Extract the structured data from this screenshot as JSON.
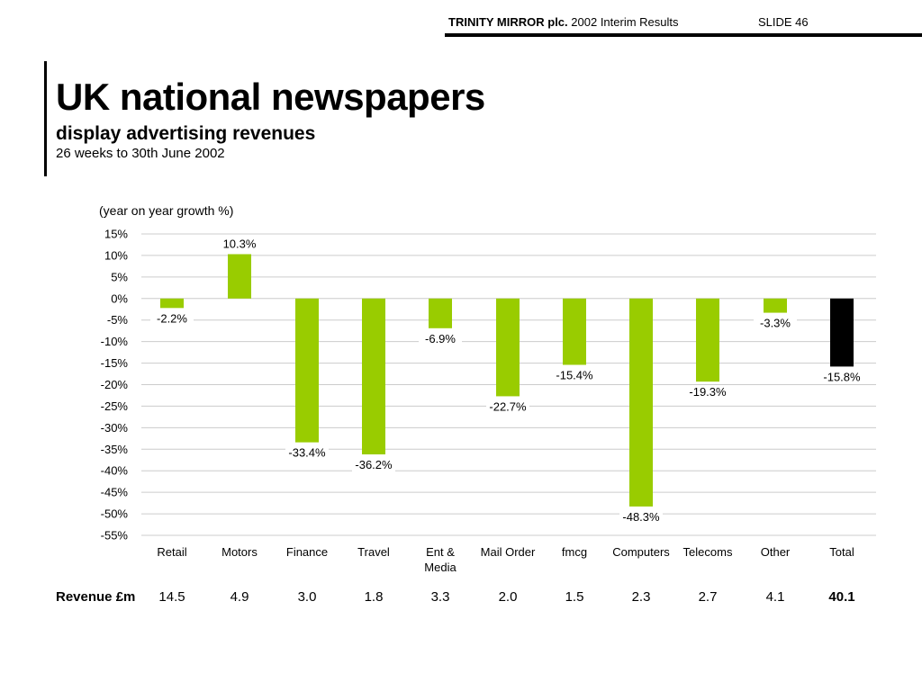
{
  "header": {
    "company": "TRINITY MIRROR plc.",
    "subtitle": "2002 Interim Results",
    "slide": "SLIDE 46"
  },
  "slide": {
    "title": "UK national newspapers",
    "subtitle": "display advertising revenues",
    "period": "26 weeks to 30th June 2002"
  },
  "colors": {
    "bar": "#99cc00",
    "total_bar": "#000000",
    "grid": "#cccccc"
  },
  "chart_data": {
    "type": "bar",
    "ylabel": "(year on year growth %)",
    "ylim": [
      -55,
      15
    ],
    "yticks": [
      15,
      10,
      5,
      0,
      -5,
      -10,
      -15,
      -20,
      -25,
      -30,
      -35,
      -40,
      -45,
      -50,
      -55
    ],
    "ytick_labels": [
      "15%",
      "10%",
      "5%",
      "0%",
      "-5%",
      "-10%",
      "-15%",
      "-20%",
      "-25%",
      "-30%",
      "-35%",
      "-40%",
      "-45%",
      "-50%",
      "-55%"
    ],
    "grid": true,
    "categories": [
      "Retail",
      "Motors",
      "Finance",
      "Travel",
      "Ent & Media",
      "Mail Order",
      "fmcg",
      "Computers",
      "Telecoms",
      "Other",
      "Total"
    ],
    "category_lines": [
      [
        "Retail"
      ],
      [
        "Motors"
      ],
      [
        "Finance"
      ],
      [
        "Travel"
      ],
      [
        "Ent &",
        "Media"
      ],
      [
        "Mail Order"
      ],
      [
        "fmcg"
      ],
      [
        "Computers"
      ],
      [
        "Telecoms"
      ],
      [
        "Other"
      ],
      [
        "Total"
      ]
    ],
    "values": [
      -2.2,
      10.3,
      -33.4,
      -36.2,
      -6.9,
      -22.7,
      -15.4,
      -48.3,
      -19.3,
      -3.3,
      -15.8
    ],
    "data_labels": [
      "-2.2%",
      "10.3%",
      "-33.4%",
      "-36.2%",
      "-6.9%",
      "-22.7%",
      "-15.4%",
      "-48.3%",
      "-19.3%",
      "-3.3%",
      "-15.8%"
    ]
  },
  "revenue": {
    "label": "Revenue £m",
    "values": [
      "14.5",
      "4.9",
      "3.0",
      "1.8",
      "3.3",
      "2.0",
      "1.5",
      "2.3",
      "2.7",
      "4.1",
      "40.1"
    ]
  }
}
